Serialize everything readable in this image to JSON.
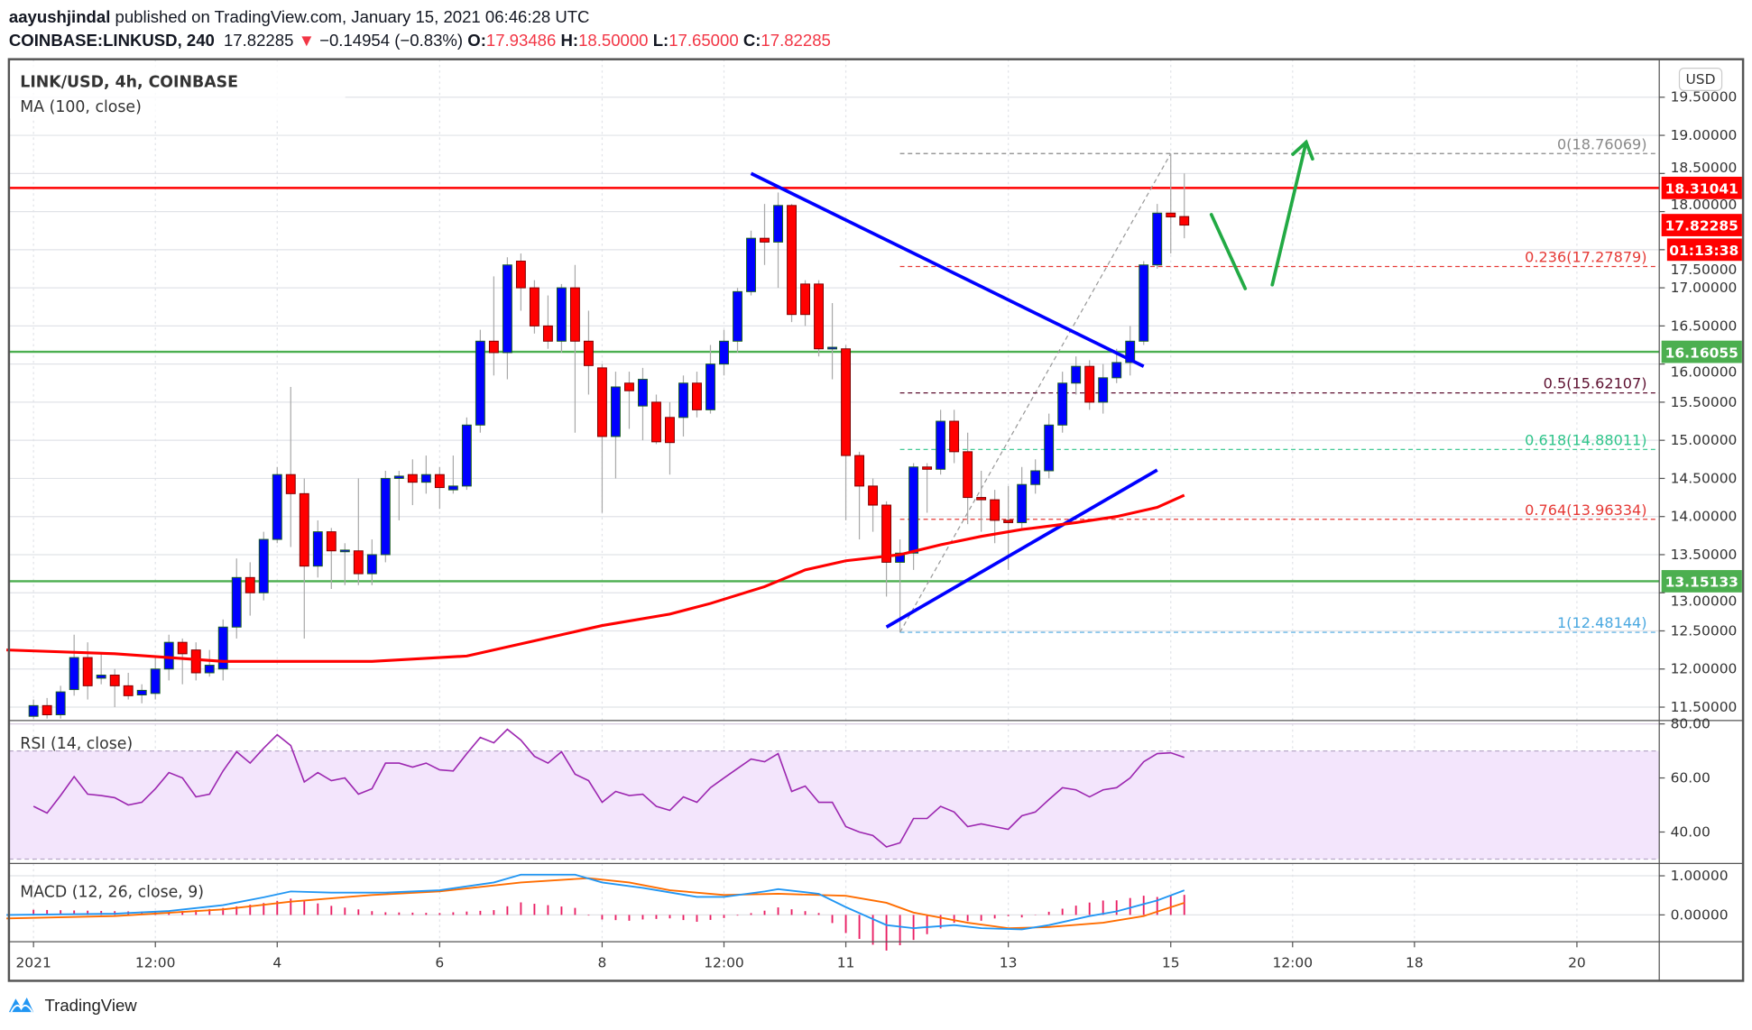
{
  "header": {
    "author": "aayushjindal",
    "published": "published on TradingView.com, January 15, 2021 06:46:28 UTC",
    "symbol": "COINBASE:LINKUSD, 240",
    "last": "17.82285",
    "change": "−0.14954 (−0.83%)",
    "o_label": "O:",
    "o": "17.93486",
    "h_label": "H:",
    "h": "18.50000",
    "l_label": "L:",
    "l": "17.65000",
    "c_label": "C:",
    "c": "17.82285",
    "direction_icon": "triangle-down"
  },
  "chart": {
    "title": "LINK/USD, 4h, COINBASE",
    "ma_legend": "MA (100, close)",
    "rsi_legend": "RSI (14, close)",
    "macd_legend": "MACD (12, 26, close, 9)",
    "currency": "USD",
    "brand": "TradingView"
  },
  "colors": {
    "up": "#0000ff",
    "down": "#ff0000",
    "ma": "#ff0000",
    "resistance": "#ff0000",
    "support": "#4caf50",
    "trendline": "#0000ff",
    "arrow": "#22aa44",
    "rsi": "#9c27b0",
    "rsi_band": "#f3e5fc",
    "macd": "#2196f3",
    "signal": "#ff6d00",
    "histogram": "#e91e63"
  },
  "chart_data": {
    "type": "candlestick",
    "interval": "240",
    "ylim": [
      11.35,
      19.75
    ],
    "price_ticks": [
      "19.50000",
      "19.00000",
      "18.50000",
      "18.00000",
      "17.50000",
      "17.00000",
      "16.50000",
      "16.00000",
      "15.50000",
      "15.00000",
      "14.50000",
      "14.00000",
      "13.50000",
      "13.00000",
      "12.50000",
      "12.00000",
      "11.50000"
    ],
    "time_ticks": [
      {
        "label": "2021",
        "t": "Jan 1 00:00"
      },
      {
        "label": "12:00",
        "t": "Jan 2 12:00"
      },
      {
        "label": "4",
        "t": "Jan 4 00:00"
      },
      {
        "label": "6",
        "t": "Jan 6 00:00"
      },
      {
        "label": "8",
        "t": "Jan 8 00:00"
      },
      {
        "label": "12:00",
        "t": "Jan 9 12:00"
      },
      {
        "label": "11",
        "t": "Jan 11 00:00"
      },
      {
        "label": "13",
        "t": "Jan 13 00:00"
      },
      {
        "label": "15",
        "t": "Jan 15 00:00"
      },
      {
        "label": "12:00",
        "t": "Jan 16 12:00"
      },
      {
        "label": "18",
        "t": "Jan 18 00:00"
      },
      {
        "label": "20",
        "t": "Jan 20 00:00"
      }
    ],
    "candles_columns": [
      "t",
      "open",
      "high",
      "low",
      "close"
    ],
    "candles": [
      [
        "Jan 1 00:00",
        11.38,
        11.6,
        11.35,
        11.52
      ],
      [
        "Jan 1 04:00",
        11.52,
        11.62,
        11.35,
        11.4
      ],
      [
        "Jan 1 08:00",
        11.4,
        11.78,
        11.35,
        11.7
      ],
      [
        "Jan 1 12:00",
        11.73,
        12.45,
        11.65,
        12.15
      ],
      [
        "Jan 1 16:00",
        12.15,
        12.35,
        11.6,
        11.78
      ],
      [
        "Jan 1 20:00",
        11.88,
        12.2,
        11.8,
        11.92
      ],
      [
        "Jan 2 00:00",
        11.92,
        12.0,
        11.5,
        11.78
      ],
      [
        "Jan 2 04:00",
        11.78,
        11.95,
        11.6,
        11.65
      ],
      [
        "Jan 2 08:00",
        11.66,
        11.8,
        11.55,
        11.72
      ],
      [
        "Jan 2 12:00",
        11.68,
        12.15,
        11.6,
        12.0
      ],
      [
        "Jan 2 16:00",
        12.0,
        12.45,
        11.85,
        12.35
      ],
      [
        "Jan 2 20:00",
        12.35,
        12.4,
        11.8,
        12.2
      ],
      [
        "Jan 3 00:00",
        12.25,
        12.35,
        11.85,
        11.95
      ],
      [
        "Jan 3 04:00",
        11.95,
        12.25,
        11.9,
        12.05
      ],
      [
        "Jan 3 08:00",
        12.0,
        12.65,
        11.85,
        12.55
      ],
      [
        "Jan 3 12:00",
        12.55,
        13.45,
        12.4,
        13.2
      ],
      [
        "Jan 3 16:00",
        13.2,
        13.4,
        12.7,
        13.0
      ],
      [
        "Jan 3 20:00",
        13.0,
        13.8,
        12.9,
        13.7
      ],
      [
        "Jan 4 00:00",
        13.7,
        14.65,
        13.65,
        14.55
      ],
      [
        "Jan 4 04:00",
        14.55,
        15.7,
        13.6,
        14.3
      ],
      [
        "Jan 4 08:00",
        14.3,
        14.5,
        12.4,
        13.35
      ],
      [
        "Jan 4 12:00",
        13.35,
        13.95,
        13.2,
        13.8
      ],
      [
        "Jan 4 16:00",
        13.8,
        13.85,
        13.05,
        13.55
      ],
      [
        "Jan 4 20:00",
        13.55,
        13.65,
        13.1,
        13.56
      ],
      [
        "Jan 5 00:00",
        13.55,
        14.5,
        13.1,
        13.25
      ],
      [
        "Jan 5 04:00",
        13.25,
        13.7,
        13.1,
        13.5
      ],
      [
        "Jan 5 08:00",
        13.5,
        14.6,
        13.4,
        14.5
      ],
      [
        "Jan 5 12:00",
        14.5,
        14.6,
        13.95,
        14.53
      ],
      [
        "Jan 5 16:00",
        14.55,
        14.75,
        14.15,
        14.45
      ],
      [
        "Jan 5 20:00",
        14.45,
        14.8,
        14.3,
        14.55
      ],
      [
        "Jan 6 00:00",
        14.55,
        14.65,
        14.1,
        14.38
      ],
      [
        "Jan 6 04:00",
        14.35,
        14.8,
        14.3,
        14.4
      ],
      [
        "Jan 6 08:00",
        14.4,
        15.3,
        14.35,
        15.2
      ],
      [
        "Jan 6 12:00",
        15.2,
        16.45,
        15.1,
        16.3
      ],
      [
        "Jan 6 16:00",
        16.3,
        17.15,
        15.85,
        16.15
      ],
      [
        "Jan 6 20:00",
        16.15,
        17.4,
        15.8,
        17.3
      ],
      [
        "Jan 7 00:00",
        17.35,
        17.45,
        16.7,
        17.0
      ],
      [
        "Jan 7 04:00",
        17.0,
        17.1,
        16.4,
        16.5
      ],
      [
        "Jan 7 08:00",
        16.5,
        16.9,
        16.2,
        16.3
      ],
      [
        "Jan 7 12:00",
        16.3,
        17.05,
        16.15,
        17.0
      ],
      [
        "Jan 7 16:00",
        17.0,
        17.3,
        15.1,
        16.3
      ],
      [
        "Jan 7 20:00",
        16.3,
        16.7,
        15.6,
        15.98
      ],
      [
        "Jan 8 00:00",
        15.95,
        16.0,
        14.05,
        15.05
      ],
      [
        "Jan 8 04:00",
        15.05,
        15.9,
        14.5,
        15.7
      ],
      [
        "Jan 8 08:00",
        15.75,
        15.9,
        15.15,
        15.65
      ],
      [
        "Jan 8 12:00",
        15.45,
        15.95,
        15.0,
        15.8
      ],
      [
        "Jan 8 16:00",
        15.5,
        15.6,
        14.95,
        14.98
      ],
      [
        "Jan 8 20:00",
        15.3,
        15.5,
        14.55,
        14.97
      ],
      [
        "Jan 9 00:00",
        15.3,
        15.85,
        15.05,
        15.75
      ],
      [
        "Jan 9 04:00",
        15.75,
        15.9,
        15.3,
        15.4
      ],
      [
        "Jan 9 08:00",
        15.4,
        16.25,
        15.35,
        16.0
      ],
      [
        "Jan 9 12:00",
        16.0,
        16.45,
        15.85,
        16.3
      ],
      [
        "Jan 9 16:00",
        16.3,
        17.0,
        16.15,
        16.95
      ],
      [
        "Jan 9 20:00",
        16.95,
        17.75,
        16.9,
        17.65
      ],
      [
        "Jan 10 00:00",
        17.65,
        18.1,
        17.3,
        17.6
      ],
      [
        "Jan 10 04:00",
        17.6,
        18.25,
        17.0,
        18.08
      ],
      [
        "Jan 10 08:00",
        18.08,
        18.1,
        16.55,
        16.65
      ],
      [
        "Jan 10 12:00",
        17.05,
        17.1,
        16.5,
        16.65
      ],
      [
        "Jan 10 16:00",
        17.05,
        17.1,
        16.1,
        16.2
      ],
      [
        "Jan 10 20:00",
        16.2,
        16.8,
        15.8,
        16.22
      ],
      [
        "Jan 11 00:00",
        16.2,
        16.25,
        13.95,
        14.8
      ],
      [
        "Jan 11 04:00",
        14.8,
        14.85,
        13.7,
        14.4
      ],
      [
        "Jan 11 08:00",
        14.4,
        14.5,
        13.8,
        14.15
      ],
      [
        "Jan 11 12:00",
        14.15,
        14.2,
        12.95,
        13.4
      ],
      [
        "Jan 11 16:00",
        13.4,
        13.7,
        12.48,
        13.52
      ],
      [
        "Jan 11 20:00",
        13.52,
        14.7,
        13.3,
        14.65
      ],
      [
        "Jan 12 00:00",
        14.65,
        14.7,
        14.05,
        14.62
      ],
      [
        "Jan 12 04:00",
        14.62,
        15.4,
        14.55,
        15.25
      ],
      [
        "Jan 12 08:00",
        15.25,
        15.4,
        14.7,
        14.85
      ],
      [
        "Jan 12 12:00",
        14.85,
        15.1,
        13.9,
        14.25
      ],
      [
        "Jan 12 16:00",
        14.25,
        14.6,
        13.8,
        14.22
      ],
      [
        "Jan 12 20:00",
        14.22,
        14.35,
        13.65,
        13.95
      ],
      [
        "Jan 13 00:00",
        13.95,
        14.4,
        13.3,
        13.92
      ],
      [
        "Jan 13 04:00",
        13.92,
        14.65,
        13.85,
        14.42
      ],
      [
        "Jan 13 08:00",
        14.42,
        14.75,
        14.3,
        14.6
      ],
      [
        "Jan 13 12:00",
        14.6,
        15.35,
        14.5,
        15.2
      ],
      [
        "Jan 13 16:00",
        15.2,
        15.9,
        15.1,
        15.75
      ],
      [
        "Jan 13 20:00",
        15.75,
        16.1,
        15.6,
        15.97
      ],
      [
        "Jan 14 00:00",
        15.97,
        16.05,
        15.4,
        15.5
      ],
      [
        "Jan 14 04:00",
        15.5,
        16.0,
        15.35,
        15.82
      ],
      [
        "Jan 14 08:00",
        15.82,
        16.2,
        15.75,
        16.02
      ],
      [
        "Jan 14 12:00",
        16.02,
        16.5,
        15.85,
        16.3
      ],
      [
        "Jan 14 16:00",
        16.3,
        17.35,
        16.25,
        17.3
      ],
      [
        "Jan 14 20:00",
        17.3,
        18.1,
        17.25,
        17.98
      ],
      [
        "Jan 15 00:00",
        17.98,
        18.76,
        17.45,
        17.93
      ],
      [
        "Jan 15 04:00",
        17.93486,
        18.5,
        17.65,
        17.82285
      ]
    ],
    "ma100": [
      [
        "Dec 31 16:00",
        12.25
      ],
      [
        "Jan 2 00:00",
        12.2
      ],
      [
        "Jan 3 08:00",
        12.1
      ],
      [
        "Jan 4 00:00",
        12.1
      ],
      [
        "Jan 5 04:00",
        12.1
      ],
      [
        "Jan 6 08:00",
        12.17
      ],
      [
        "Jan 7 04:00",
        12.37
      ],
      [
        "Jan 8 00:00",
        12.57
      ],
      [
        "Jan 8 20:00",
        12.72
      ],
      [
        "Jan 9 08:00",
        12.86
      ],
      [
        "Jan 10 00:00",
        13.08
      ],
      [
        "Jan 10 12:00",
        13.3
      ],
      [
        "Jan 11 00:00",
        13.42
      ],
      [
        "Jan 11 16:00",
        13.5
      ],
      [
        "Jan 12 04:00",
        13.63
      ],
      [
        "Jan 12 16:00",
        13.74
      ],
      [
        "Jan 13 04:00",
        13.83
      ],
      [
        "Jan 13 20:00",
        13.92
      ],
      [
        "Jan 14 08:00",
        14.0
      ],
      [
        "Jan 14 20:00",
        14.12
      ],
      [
        "Jan 15 04:00",
        14.28
      ]
    ],
    "horizontal_levels": [
      {
        "price": 18.31041,
        "label": "18.31041",
        "kind": "resistance"
      },
      {
        "price": 16.16055,
        "label": "16.16055",
        "kind": "support"
      },
      {
        "price": 13.15133,
        "label": "13.15133",
        "kind": "support"
      }
    ],
    "last_price": {
      "label": "17.82285",
      "price": 17.82285,
      "countdown": "01:13:38"
    },
    "fibonacci": {
      "from": [
        "Jan 11 16:00",
        12.48144
      ],
      "to": [
        "Jan 15 00:00",
        18.76069
      ],
      "levels": [
        {
          "label": "0(18.76069)",
          "price": 18.76069,
          "color": "#888888"
        },
        {
          "label": "0.236(17.27879)",
          "price": 17.27879,
          "color": "#e53935"
        },
        {
          "label": "0.5(15.62107)",
          "price": 15.62107,
          "color": "#5d1030"
        },
        {
          "label": "0.618(14.88011)",
          "price": 14.88011,
          "color": "#2ec48a"
        },
        {
          "label": "0.764(13.96334)",
          "price": 13.96334,
          "color": "#e53935"
        },
        {
          "label": "1(12.48144)",
          "price": 12.48144,
          "color": "#4aa8e0"
        }
      ]
    },
    "trendlines": [
      {
        "from": [
          "Jan 9 20:00",
          18.5
        ],
        "to": [
          "Jan 14 16:00",
          15.97
        ]
      },
      {
        "from": [
          "Jan 11 12:00",
          12.55
        ],
        "to": [
          "Jan 14 20:00",
          14.61
        ]
      }
    ],
    "arrows": [
      {
        "from": [
          "Jan 15 12:00",
          17.96
        ],
        "to": [
          "Jan 15 22:00",
          16.99
        ],
        "head": false
      },
      {
        "from": [
          "Jan 16 06:00",
          17.04
        ],
        "to": [
          "Jan 16 16:00",
          18.91
        ],
        "head": true
      }
    ],
    "rsi": {
      "ticks": [
        "80.00",
        "60.00",
        "40.00"
      ],
      "band": [
        30,
        70
      ],
      "ylim": [
        25,
        82
      ],
      "values_per_candle": [
        49.5,
        47,
        53.5,
        60.5,
        54,
        53.5,
        52.7,
        50,
        51,
        56,
        62,
        60,
        53,
        54,
        62.6,
        69.7,
        65.5,
        71,
        76,
        72,
        58.5,
        62,
        59,
        60,
        54,
        56,
        65.5,
        65.5,
        64,
        65.5,
        63,
        62.6,
        69,
        75,
        73,
        78,
        74,
        68,
        65.5,
        69.7,
        61.4,
        59,
        51,
        55,
        53.5,
        54,
        49.5,
        48,
        53,
        51,
        56.4,
        60,
        63.5,
        67,
        66,
        69,
        55,
        57,
        51,
        51,
        42,
        40,
        38.7,
        34.5,
        36,
        45,
        45,
        49.5,
        47.4,
        42,
        43,
        42,
        41,
        46,
        47.4,
        52,
        56.4,
        55.6,
        53,
        55.6,
        56.4,
        60,
        66,
        69,
        69.3,
        67.6
      ]
    },
    "macd": {
      "ticks": [
        "1.00000",
        "0.00000"
      ],
      "ylim": [
        -0.6,
        1.1
      ],
      "macd": [
        [
          "Dec 31 16:00",
          0
        ],
        [
          "Jan 2 00:00",
          0.03
        ],
        [
          "Jan 2 16:00",
          0.1
        ],
        [
          "Jan 3 08:00",
          0.25
        ],
        [
          "Jan 3 20:00",
          0.45
        ],
        [
          "Jan 4 04:00",
          0.6
        ],
        [
          "Jan 4 16:00",
          0.57
        ],
        [
          "Jan 5 08:00",
          0.57
        ],
        [
          "Jan 6 00:00",
          0.63
        ],
        [
          "Jan 6 16:00",
          0.83
        ],
        [
          "Jan 7 00:00",
          1.03
        ],
        [
          "Jan 7 16:00",
          1.03
        ],
        [
          "Jan 8 00:00",
          0.83
        ],
        [
          "Jan 8 12:00",
          0.69
        ],
        [
          "Jan 9 04:00",
          0.46
        ],
        [
          "Jan 9 12:00",
          0.46
        ],
        [
          "Jan 10 00:00",
          0.6
        ],
        [
          "Jan 10 04:00",
          0.66
        ],
        [
          "Jan 10 16:00",
          0.54
        ],
        [
          "Jan 11 00:00",
          0.2
        ],
        [
          "Jan 11 12:00",
          -0.26
        ],
        [
          "Jan 11 20:00",
          -0.34
        ],
        [
          "Jan 12 08:00",
          -0.26
        ],
        [
          "Jan 12 16:00",
          -0.34
        ],
        [
          "Jan 13 04:00",
          -0.37
        ],
        [
          "Jan 13 12:00",
          -0.26
        ],
        [
          "Jan 14 00:00",
          -0.03
        ],
        [
          "Jan 14 08:00",
          0.09
        ],
        [
          "Jan 14 20:00",
          0.37
        ],
        [
          "Jan 15 04:00",
          0.63
        ]
      ],
      "signal": [
        [
          "Dec 31 16:00",
          -0.09
        ],
        [
          "Jan 2 00:00",
          -0.03
        ],
        [
          "Jan 3 08:00",
          0.14
        ],
        [
          "Jan 4 04:00",
          0.34
        ],
        [
          "Jan 5 04:00",
          0.51
        ],
        [
          "Jan 6 00:00",
          0.6
        ],
        [
          "Jan 7 00:00",
          0.83
        ],
        [
          "Jan 7 20:00",
          0.94
        ],
        [
          "Jan 8 08:00",
          0.83
        ],
        [
          "Jan 8 20:00",
          0.63
        ],
        [
          "Jan 9 12:00",
          0.51
        ],
        [
          "Jan 10 04:00",
          0.54
        ],
        [
          "Jan 11 00:00",
          0.49
        ],
        [
          "Jan 11 12:00",
          0.31
        ],
        [
          "Jan 11 20:00",
          0.06
        ],
        [
          "Jan 12 12:00",
          -0.2
        ],
        [
          "Jan 13 00:00",
          -0.34
        ],
        [
          "Jan 13 12:00",
          -0.31
        ],
        [
          "Jan 14 04:00",
          -0.2
        ],
        [
          "Jan 14 16:00",
          -0.03
        ],
        [
          "Jan 15 04:00",
          0.31
        ]
      ]
    }
  }
}
